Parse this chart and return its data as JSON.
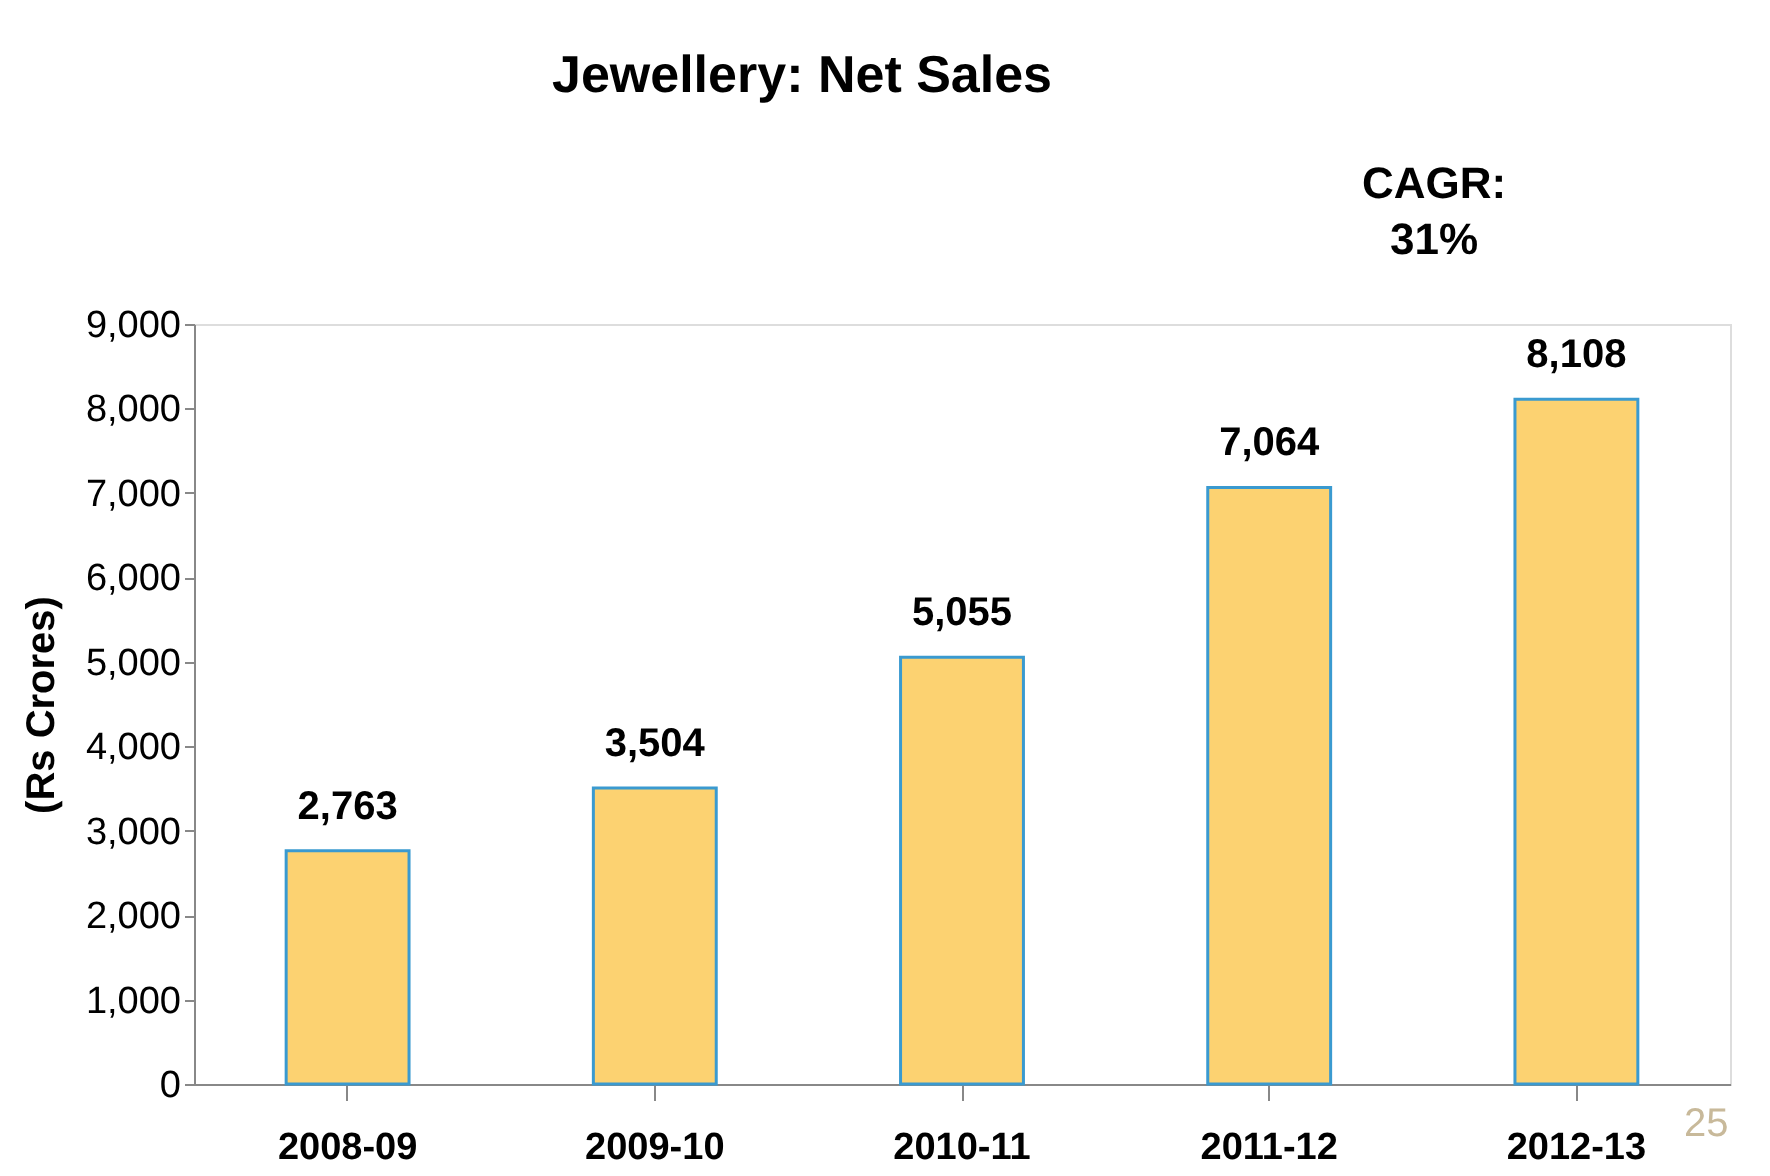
{
  "chart_data": {
    "type": "bar",
    "title": "Jewellery: Net Sales",
    "ylabel": "(Rs Crores)",
    "categories": [
      "2008-09",
      "2009-10",
      "2010-11",
      "2011-12",
      "2012-13"
    ],
    "values": [
      2763,
      3504,
      5055,
      7064,
      8108
    ],
    "color": "#fcd271",
    "value_labels": [
      "2,763",
      "3,504",
      "5,055",
      "7,064",
      "8,108"
    ],
    "ylim": [
      0,
      9000
    ],
    "yticks": [
      0,
      {
        "value": 1000,
        "label": "1,000"
      },
      {
        "value": 2000,
        "label": "2,000"
      },
      {
        "value": 3000,
        "label": "3,000"
      },
      {
        "value": 4000,
        "label": "4,000"
      },
      {
        "value": 5000,
        "label": "5,000"
      },
      {
        "value": 6000,
        "label": "6,000"
      },
      {
        "value": 7000,
        "label": "7,000"
      },
      {
        "value": 8000,
        "label": "8,000"
      },
      {
        "value": 9000,
        "label": "9,000"
      }
    ],
    "grid": false,
    "annotations": [
      "CAGR: 31%",
      "25"
    ]
  }
}
